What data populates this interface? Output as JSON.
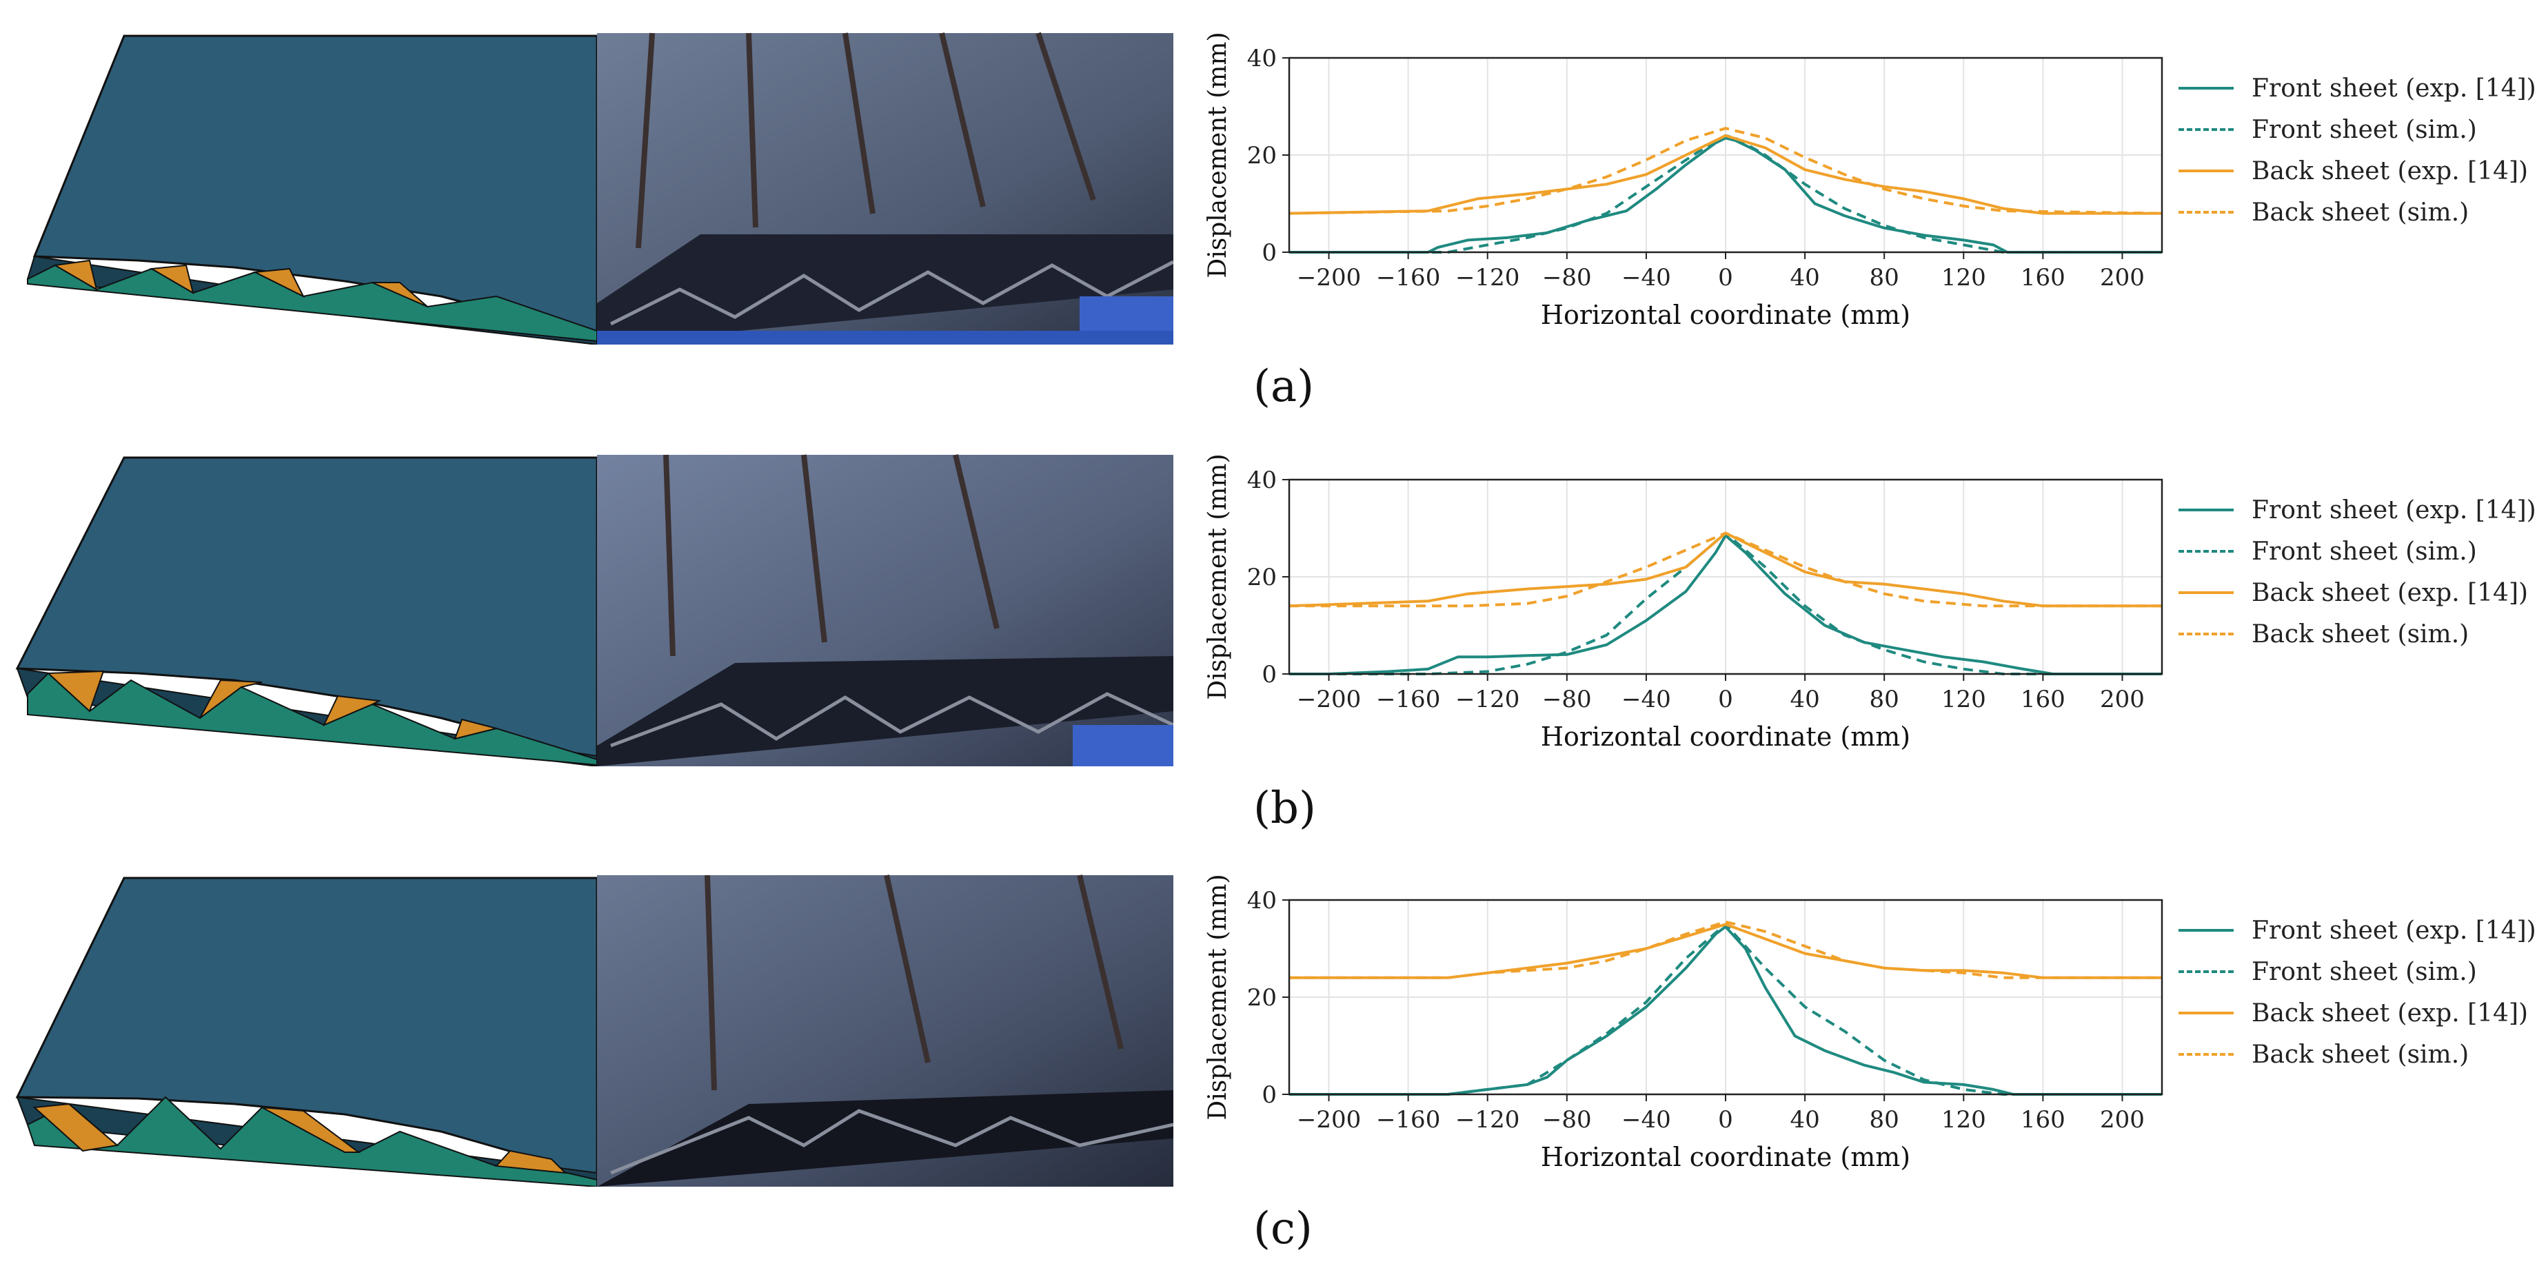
{
  "colors": {
    "front": "#1f8a80",
    "back": "#f0a12b",
    "sim_panel_top": "#2b5a74",
    "sim_panel_side": "#1a4052",
    "sim_core_green": "#1f8370",
    "sim_core_orange": "#d58b26",
    "photo_steel": "#5f6d86"
  },
  "panels": [
    {
      "label": "(a)"
    },
    {
      "label": "(b)"
    },
    {
      "label": "(c)"
    }
  ],
  "legend": {
    "front_exp": "Front sheet (exp. [14])",
    "front_sim": "Front sheet (sim.)",
    "back_exp": "Back sheet (exp. [14])",
    "back_sim": "Back sheet (sim.)"
  },
  "chart_data": [
    {
      "type": "line",
      "panel": "(a)",
      "xlabel": "Horizontal coordinate (mm)",
      "ylabel": "Displacement (mm)",
      "xlim": [
        -220,
        220
      ],
      "ylim": [
        0,
        40
      ],
      "xticks": [
        -200,
        -160,
        -120,
        -80,
        -40,
        0,
        40,
        80,
        120,
        160,
        200
      ],
      "yticks": [
        0,
        20,
        40
      ],
      "grid": true,
      "legend_position": "right",
      "series": [
        {
          "name": "Front sheet (exp. [14])",
          "style": "solid",
          "color": "front",
          "x": [
            -220,
            -150,
            -145,
            -130,
            -110,
            -90,
            -70,
            -50,
            -35,
            -20,
            -5,
            0,
            5,
            15,
            30,
            45,
            60,
            80,
            100,
            120,
            135,
            142,
            220
          ],
          "y": [
            0,
            0,
            1,
            2.5,
            3,
            4,
            6.5,
            8.5,
            13,
            18,
            22.5,
            23.5,
            23,
            21,
            17,
            10,
            7.5,
            5,
            3.5,
            2.5,
            1.5,
            0,
            0
          ]
        },
        {
          "name": "Front sheet (sim.)",
          "style": "dashed",
          "color": "front",
          "x": [
            -220,
            -140,
            -120,
            -100,
            -80,
            -60,
            -40,
            -20,
            -5,
            0,
            5,
            20,
            40,
            60,
            80,
            100,
            120,
            140,
            220
          ],
          "y": [
            0,
            0,
            1.5,
            3,
            5,
            8,
            13.5,
            19,
            23,
            24,
            23.5,
            20,
            14,
            9,
            5.5,
            3,
            1.5,
            0,
            0
          ]
        },
        {
          "name": "Back sheet (exp. [14])",
          "style": "solid",
          "color": "back",
          "x": [
            -220,
            -150,
            -125,
            -100,
            -80,
            -60,
            -40,
            -20,
            0,
            20,
            40,
            60,
            80,
            100,
            120,
            140,
            160,
            220
          ],
          "y": [
            8,
            8.5,
            11,
            12,
            13,
            14,
            16,
            20,
            24,
            21.5,
            17,
            15,
            13.5,
            12.5,
            11,
            9,
            8,
            8
          ]
        },
        {
          "name": "Back sheet (sim.)",
          "style": "dashed",
          "color": "back",
          "x": [
            -220,
            -140,
            -120,
            -100,
            -80,
            -60,
            -40,
            -20,
            0,
            20,
            40,
            60,
            80,
            100,
            120,
            140,
            220
          ],
          "y": [
            8,
            8.5,
            9.5,
            11,
            13,
            15.5,
            19,
            23,
            25.5,
            23.5,
            19.5,
            16,
            13,
            11,
            9.5,
            8.5,
            8
          ]
        }
      ]
    },
    {
      "type": "line",
      "panel": "(b)",
      "xlabel": "Horizontal coordinate (mm)",
      "ylabel": "Displacement (mm)",
      "xlim": [
        -220,
        220
      ],
      "ylim": [
        0,
        40
      ],
      "xticks": [
        -200,
        -160,
        -120,
        -80,
        -40,
        0,
        40,
        80,
        120,
        160,
        200
      ],
      "yticks": [
        0,
        20,
        40
      ],
      "grid": true,
      "legend_position": "right",
      "series": [
        {
          "name": "Front sheet (exp. [14])",
          "style": "solid",
          "color": "front",
          "x": [
            -220,
            -200,
            -170,
            -150,
            -135,
            -120,
            -100,
            -80,
            -60,
            -40,
            -20,
            -5,
            0,
            10,
            30,
            50,
            70,
            90,
            110,
            130,
            150,
            165,
            220
          ],
          "y": [
            0,
            0,
            0.5,
            1,
            3.5,
            3.5,
            3.8,
            4,
            6,
            11,
            17,
            25,
            28.5,
            25,
            16.5,
            10,
            6.5,
            5,
            3.5,
            2.5,
            1,
            0,
            0
          ]
        },
        {
          "name": "Front sheet (sim.)",
          "style": "dashed",
          "color": "front",
          "x": [
            -220,
            -150,
            -120,
            -100,
            -80,
            -60,
            -40,
            -20,
            0,
            20,
            40,
            60,
            80,
            100,
            120,
            140,
            220
          ],
          "y": [
            0,
            0,
            0.5,
            2,
            4.5,
            8,
            15.5,
            22,
            29,
            22,
            14,
            8,
            5,
            2.5,
            1,
            0,
            0
          ]
        },
        {
          "name": "Back sheet (exp. [14])",
          "style": "solid",
          "color": "back",
          "x": [
            -220,
            -150,
            -130,
            -100,
            -80,
            -60,
            -40,
            -20,
            0,
            20,
            40,
            60,
            80,
            100,
            120,
            140,
            160,
            220
          ],
          "y": [
            14,
            15,
            16.5,
            17.5,
            18,
            18.5,
            19.5,
            22,
            29,
            25,
            21,
            19,
            18.5,
            17.5,
            16.5,
            15,
            14,
            14
          ]
        },
        {
          "name": "Back sheet (sim.)",
          "style": "dashed",
          "color": "back",
          "x": [
            -220,
            -130,
            -100,
            -80,
            -60,
            -40,
            -20,
            0,
            20,
            40,
            60,
            80,
            100,
            130,
            220
          ],
          "y": [
            14,
            14,
            14.5,
            16,
            19,
            22,
            25.5,
            29,
            25.5,
            22,
            19,
            16.5,
            15,
            14,
            14
          ]
        }
      ]
    },
    {
      "type": "line",
      "panel": "(c)",
      "xlabel": "Horizontal coordinate (mm)",
      "ylabel": "Displacement (mm)",
      "xlim": [
        -220,
        220
      ],
      "ylim": [
        0,
        40
      ],
      "xticks": [
        -200,
        -160,
        -120,
        -80,
        -40,
        0,
        40,
        80,
        120,
        160,
        200
      ],
      "yticks": [
        0,
        20,
        40
      ],
      "grid": true,
      "legend_position": "right",
      "series": [
        {
          "name": "Front sheet (exp. [14])",
          "style": "solid",
          "color": "front",
          "x": [
            -220,
            -140,
            -120,
            -100,
            -90,
            -80,
            -60,
            -40,
            -20,
            -5,
            0,
            10,
            20,
            35,
            50,
            70,
            85,
            100,
            120,
            135,
            145,
            220
          ],
          "y": [
            0,
            0,
            1,
            2,
            3.5,
            7,
            12,
            18,
            26,
            33,
            34.5,
            30,
            22,
            12,
            9,
            6,
            4.5,
            2.5,
            2,
            1,
            0,
            0
          ]
        },
        {
          "name": "Front sheet (sim.)",
          "style": "dashed",
          "color": "front",
          "x": [
            -220,
            -140,
            -120,
            -100,
            -80,
            -60,
            -40,
            -20,
            0,
            20,
            40,
            60,
            80,
            100,
            120,
            140,
            220
          ],
          "y": [
            0,
            0,
            1,
            2,
            7,
            12.5,
            19,
            28,
            35,
            26,
            18,
            13,
            7,
            3,
            1,
            0,
            0
          ]
        },
        {
          "name": "Back sheet (exp. [14])",
          "style": "solid",
          "color": "back",
          "x": [
            -220,
            -140,
            -120,
            -100,
            -80,
            -60,
            -40,
            -20,
            0,
            20,
            40,
            60,
            80,
            100,
            120,
            140,
            160,
            220
          ],
          "y": [
            24,
            24,
            25,
            26,
            27,
            28.5,
            30,
            32.5,
            35,
            32,
            29,
            27.5,
            26,
            25.5,
            25.5,
            25,
            24,
            24
          ]
        },
        {
          "name": "Back sheet (sim.)",
          "style": "dashed",
          "color": "back",
          "x": [
            -220,
            -140,
            -120,
            -100,
            -80,
            -60,
            -40,
            -20,
            0,
            20,
            40,
            60,
            80,
            100,
            120,
            140,
            220
          ],
          "y": [
            24,
            24,
            25,
            25.5,
            26,
            27.5,
            30,
            33,
            35.5,
            33.5,
            30.5,
            27.5,
            26,
            25.5,
            25,
            24,
            24
          ]
        }
      ]
    }
  ]
}
